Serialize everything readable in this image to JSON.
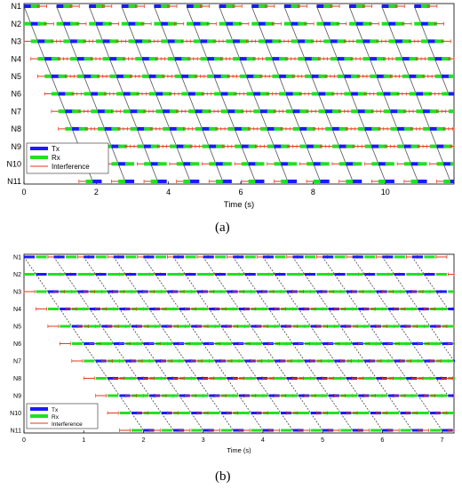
{
  "captions": [
    "(a)",
    "(b)"
  ],
  "colors": {
    "tx": "#1a1aff",
    "rx": "#22e022",
    "interference": "#e23a1a",
    "line": "#555555"
  },
  "chart_data": [
    {
      "type": "timeline",
      "xlabel": "Time (s)",
      "xlim": [
        0,
        11.9
      ],
      "xticks": [
        "0",
        "2",
        "4",
        "6",
        "8",
        "10"
      ],
      "xtick_values": [
        0,
        2,
        4,
        6,
        8,
        10
      ],
      "nodes": [
        "N1",
        "N2",
        "N3",
        "N4",
        "N5",
        "N6",
        "N7",
        "N8",
        "N9",
        "N10",
        "N11"
      ],
      "legend": [
        "Tx",
        "Rx",
        "Interference"
      ],
      "legend_position": "bottom-left",
      "hop_time_s": 0.19,
      "slot_width_s": 0.25,
      "packet_interval_s": 0.9,
      "packets": 13
    },
    {
      "type": "timeline",
      "xlabel": "Time (s)",
      "xlim": [
        0,
        7.2
      ],
      "xticks": [
        "0",
        "1",
        "2",
        "3",
        "4",
        "5",
        "6",
        "7"
      ],
      "xtick_values": [
        0,
        1,
        2,
        3,
        4,
        5,
        6,
        7
      ],
      "nodes": [
        "N1",
        "N2",
        "N3",
        "N4",
        "N5",
        "N6",
        "N7",
        "N8",
        "N9",
        "N10",
        "N11"
      ],
      "legend": [
        "Tx",
        "Rx",
        "Interference"
      ],
      "legend_position": "bottom-left",
      "hop_time_s": 0.2,
      "slot_width_s": 0.18,
      "packet_interval_s": 0.5,
      "packets": 14
    }
  ]
}
